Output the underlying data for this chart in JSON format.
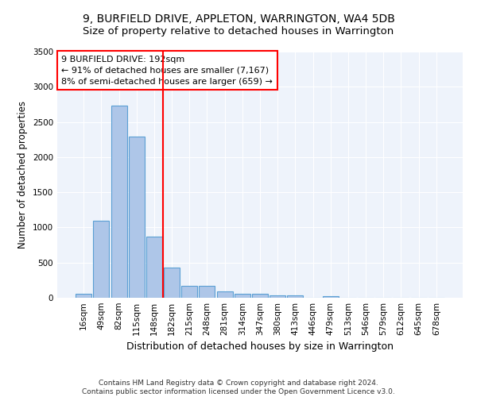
{
  "title": "9, BURFIELD DRIVE, APPLETON, WARRINGTON, WA4 5DB",
  "subtitle": "Size of property relative to detached houses in Warrington",
  "xlabel": "Distribution of detached houses by size in Warrington",
  "ylabel": "Number of detached properties",
  "bar_labels": [
    "16sqm",
    "49sqm",
    "82sqm",
    "115sqm",
    "148sqm",
    "182sqm",
    "215sqm",
    "248sqm",
    "281sqm",
    "314sqm",
    "347sqm",
    "380sqm",
    "413sqm",
    "446sqm",
    "479sqm",
    "513sqm",
    "546sqm",
    "579sqm",
    "612sqm",
    "645sqm",
    "678sqm"
  ],
  "bar_values": [
    55,
    1100,
    2730,
    2290,
    870,
    430,
    165,
    165,
    90,
    60,
    55,
    30,
    30,
    0,
    25,
    0,
    0,
    0,
    0,
    0,
    0
  ],
  "bar_color": "#aec6e8",
  "bar_edgecolor": "#5a9fd4",
  "background_color": "#eef3fb",
  "vline_index": 5,
  "vline_color": "red",
  "annotation_line1": "9 BURFIELD DRIVE: 192sqm",
  "annotation_line2": "← 91% of detached houses are smaller (7,167)",
  "annotation_line3": "8% of semi-detached houses are larger (659) →",
  "ylim": [
    0,
    3500
  ],
  "yticks": [
    0,
    500,
    1000,
    1500,
    2000,
    2500,
    3000,
    3500
  ],
  "footer": "Contains HM Land Registry data © Crown copyright and database right 2024.\nContains public sector information licensed under the Open Government Licence v3.0.",
  "title_fontsize": 10,
  "subtitle_fontsize": 9.5,
  "xlabel_fontsize": 9,
  "ylabel_fontsize": 8.5,
  "annotation_fontsize": 8,
  "tick_fontsize": 7.5
}
